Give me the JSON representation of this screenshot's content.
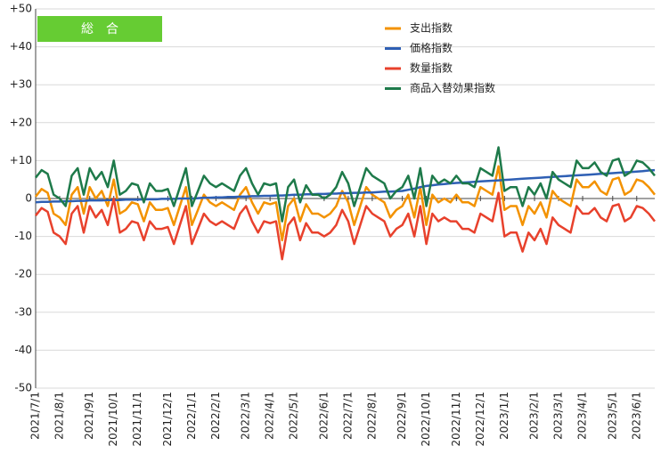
{
  "chart_data": {
    "type": "line",
    "annotation": "総　合",
    "categories": [
      "2021/7/1",
      null,
      null,
      null,
      "2021/8/1",
      null,
      null,
      null,
      null,
      "2021/9/1",
      null,
      null,
      null,
      "2021/10/1",
      null,
      null,
      null,
      "2021/11/1",
      null,
      null,
      null,
      null,
      "2021/12/1",
      null,
      null,
      null,
      "2022/1/1",
      null,
      null,
      null,
      "2022/2/1",
      null,
      null,
      null,
      null,
      "2022/3/1",
      null,
      null,
      null,
      "2022/4/1",
      null,
      null,
      null,
      "2022/5/1",
      null,
      null,
      null,
      null,
      "2022/6/1",
      null,
      null,
      null,
      "2022/7/1",
      null,
      null,
      null,
      "2022/8/1",
      null,
      null,
      null,
      null,
      "2022/9/1",
      null,
      null,
      null,
      "2022/10/1",
      null,
      null,
      null,
      null,
      "2022/11/1",
      null,
      null,
      null,
      "2022/12/1",
      null,
      null,
      null,
      "2023/1/1",
      null,
      null,
      null,
      null,
      "2023/2/1",
      null,
      null,
      null,
      "2023/3/1",
      null,
      null,
      null,
      "2023/4/1",
      null,
      null,
      null,
      null,
      "2023/5/1",
      null,
      null,
      null,
      "2023/6/1",
      null,
      null,
      null
    ],
    "series": [
      {
        "name": "支出指数",
        "color": "#f39200",
        "values": [
          0.5,
          2.5,
          1.5,
          -4,
          -5,
          -7,
          1,
          3,
          -4,
          3,
          0,
          2,
          -2,
          5,
          -4,
          -3,
          -1,
          -1.5,
          -6,
          -1,
          -3,
          -3,
          -2.5,
          -7,
          -2,
          3,
          -7,
          -3,
          1,
          -1,
          -2,
          -1,
          -2,
          -3,
          1,
          3,
          -1,
          -4,
          -1,
          -1.5,
          -1,
          -11,
          -2,
          0,
          -6,
          -1.5,
          -4,
          -4,
          -5,
          -4,
          -2,
          2,
          -1,
          -7,
          -2,
          3,
          1,
          0,
          -1,
          -5,
          -3,
          -2,
          1,
          -5,
          3,
          -7,
          1,
          -1,
          0,
          -1,
          1,
          -1,
          -1,
          -2,
          3,
          2,
          1,
          8.5,
          -3,
          -2,
          -2,
          -7,
          -2,
          -4,
          -1,
          -5,
          2,
          0,
          -1,
          -2,
          5,
          3,
          3,
          4.5,
          2,
          1,
          5,
          5.5,
          1,
          2,
          5,
          4.5,
          3,
          1
        ]
      },
      {
        "name": "価格指数",
        "color": "#2e5fb4",
        "values": [
          -1,
          -0.9,
          -0.9,
          -0.8,
          -0.8,
          -0.7,
          -0.7,
          -0.6,
          -0.6,
          -0.5,
          -0.5,
          -0.5,
          -0.4,
          -0.4,
          -0.4,
          -0.3,
          -0.3,
          -0.3,
          -0.2,
          -0.2,
          -0.2,
          -0.1,
          -0.1,
          -0.1,
          0,
          0,
          0,
          0.1,
          0.2,
          0.2,
          0.3,
          0.3,
          0.4,
          0.4,
          0.5,
          0.5,
          0.6,
          0.6,
          0.7,
          0.7,
          0.8,
          0.8,
          0.9,
          1,
          1,
          1.1,
          1.1,
          1.2,
          1.2,
          1.3,
          1.3,
          1.4,
          1.4,
          1.5,
          1.5,
          1.6,
          1.6,
          1.7,
          1.8,
          1.8,
          1.9,
          2,
          2.3,
          2.6,
          3,
          3.3,
          3.5,
          3.7,
          3.8,
          4,
          4.1,
          4.2,
          4.3,
          4.4,
          4.5,
          4.6,
          4.7,
          4.8,
          4.9,
          5,
          5.1,
          5.2,
          5.3,
          5.4,
          5.5,
          5.6,
          5.7,
          5.8,
          5.9,
          6,
          6.1,
          6.2,
          6.3,
          6.4,
          6.5,
          6.6,
          6.7,
          6.8,
          6.9,
          7,
          7.1,
          7.2,
          7.4,
          7.5
        ]
      },
      {
        "name": "数量指数",
        "color": "#e8412c",
        "values": [
          -4.5,
          -2.5,
          -3.5,
          -9,
          -10,
          -12,
          -4,
          -2,
          -9,
          -2,
          -5,
          -3,
          -7,
          0,
          -9,
          -8,
          -6,
          -6.5,
          -11,
          -6,
          -8,
          -8,
          -7.5,
          -12,
          -7,
          -2,
          -12,
          -8,
          -4,
          -6,
          -7,
          -6,
          -7,
          -8,
          -4,
          -2,
          -6,
          -9,
          -6,
          -6.5,
          -6,
          -16,
          -7,
          -5,
          -11,
          -6.5,
          -9,
          -9,
          -10,
          -9,
          -7,
          -3,
          -6,
          -12,
          -7,
          -2,
          -4,
          -5,
          -6,
          -10,
          -8,
          -7,
          -4,
          -10,
          -2,
          -12,
          -4,
          -6,
          -5,
          -6,
          -6,
          -8,
          -8,
          -9,
          -4,
          -5,
          -6,
          1.5,
          -10,
          -9,
          -9,
          -14,
          -9,
          -11,
          -8,
          -12,
          -5,
          -7,
          -8,
          -9,
          -2,
          -4,
          -4,
          -2.5,
          -5,
          -6,
          -2,
          -1.5,
          -6,
          -5,
          -2,
          -2.5,
          -4,
          -6
        ]
      },
      {
        "name": "商品入替効果指数",
        "color": "#1e7a4a",
        "values": [
          5.5,
          7.5,
          6.5,
          1,
          0,
          -2,
          6,
          8,
          1,
          8,
          5,
          7,
          3,
          10,
          1,
          2,
          4,
          3.5,
          -1,
          4,
          2,
          2,
          2.5,
          -2,
          3,
          8,
          -2,
          2,
          6,
          4,
          3,
          4,
          3,
          2,
          6,
          8,
          4,
          1,
          4,
          3.5,
          4,
          -6,
          3,
          5,
          -1,
          3.5,
          1,
          1,
          0,
          1,
          3,
          7,
          4,
          -2,
          3,
          8,
          6,
          5,
          4,
          0,
          2,
          3,
          6,
          0,
          8,
          -2,
          6,
          4,
          5,
          4,
          6,
          4,
          4,
          3,
          8,
          7,
          6,
          13.5,
          2,
          3,
          3,
          -2,
          3,
          1,
          4,
          0,
          7,
          5,
          4,
          3,
          10,
          8,
          8,
          9.5,
          7,
          6,
          10,
          10.5,
          6,
          7,
          10,
          9.5,
          8,
          6
        ]
      }
    ],
    "ylim": [
      -50,
      50
    ],
    "yticks": [
      {
        "value": 50,
        "label": "+50"
      },
      {
        "value": 40,
        "label": "+40"
      },
      {
        "value": 30,
        "label": "+30"
      },
      {
        "value": 20,
        "label": "+20"
      },
      {
        "value": 10,
        "label": "+10"
      },
      0,
      -10,
      -20,
      -30,
      -40,
      -50
    ],
    "grid": true,
    "legend": "top-right"
  }
}
